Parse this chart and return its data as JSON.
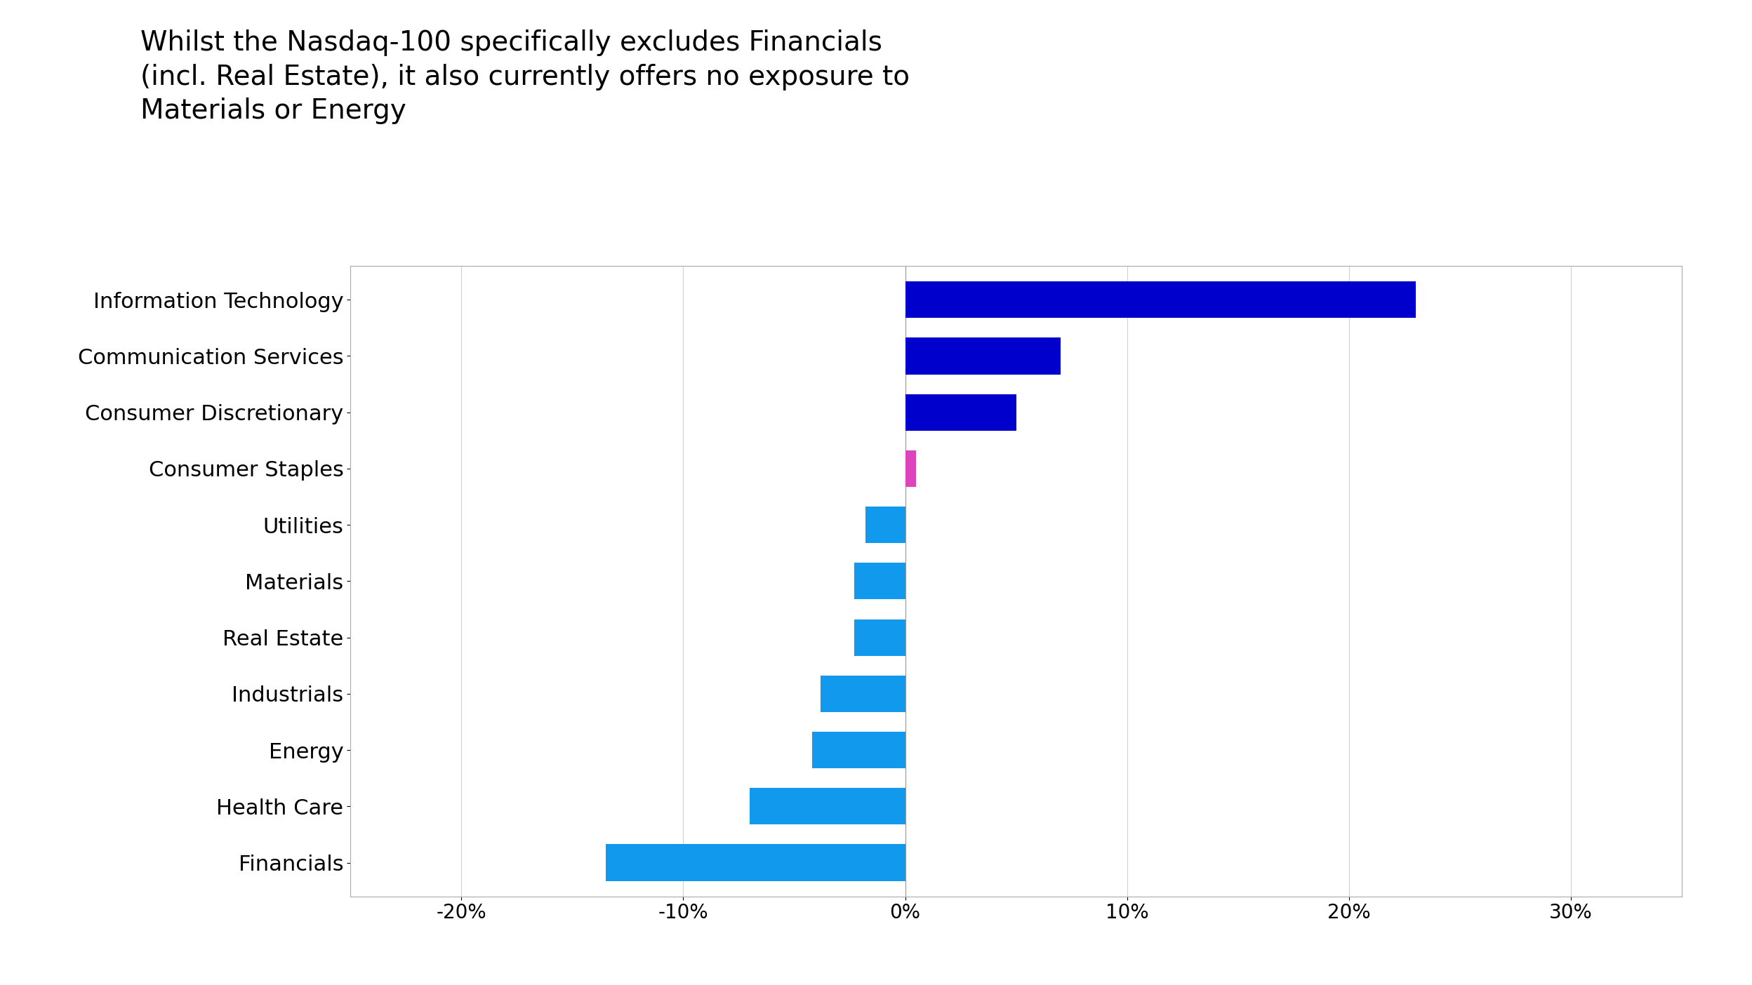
{
  "title": "Whilst the Nasdaq-100 specifically excludes Financials\n(incl. Real Estate), it also currently offers no exposure to\nMaterials or Energy",
  "categories": [
    "Information Technology",
    "Communication Services",
    "Consumer Discretionary",
    "Consumer Staples",
    "Utilities",
    "Materials",
    "Real Estate",
    "Industrials",
    "Energy",
    "Health Care",
    "Financials"
  ],
  "values": [
    23.0,
    7.0,
    5.0,
    0.5,
    -1.8,
    -2.3,
    -2.3,
    -3.8,
    -4.2,
    -7.0,
    -13.5
  ],
  "bar_colors": [
    "#0000CC",
    "#0000CC",
    "#0000CC",
    "#DD44BB",
    "#1199EE",
    "#1199EE",
    "#1199EE",
    "#1199EE",
    "#1199EE",
    "#1199EE",
    "#1199EE"
  ],
  "xlim": [
    -25,
    35
  ],
  "xticks": [
    -20,
    -10,
    0,
    10,
    20,
    30
  ],
  "xtick_labels": [
    "-20%",
    "-10%",
    "0%",
    "10%",
    "20%",
    "30%"
  ],
  "background_color": "#ffffff",
  "chart_bg_color": "#ffffff",
  "title_fontsize": 28,
  "tick_fontsize": 20,
  "label_fontsize": 22,
  "bar_height": 0.65,
  "grid_color": "#d0d0d0",
  "spine_color": "#aaaaaa"
}
